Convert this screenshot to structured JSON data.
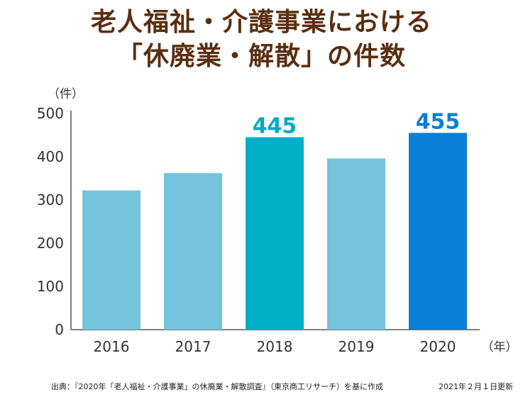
{
  "title": {
    "line1": "老人福祉・介護事業における",
    "line2": "「休廃業・解散」の件数"
  },
  "chart_data": {
    "type": "bar",
    "categories": [
      "2016",
      "2017",
      "2018",
      "2019",
      "2020"
    ],
    "values": [
      322,
      362,
      445,
      396,
      455
    ],
    "data_labels": [
      "",
      "",
      "445",
      "",
      "455"
    ],
    "colors": [
      "#74c4de",
      "#74c4de",
      "#00b0c8",
      "#74c4de",
      "#0a7fd6"
    ],
    "label_colors": [
      "",
      "",
      "#00aac3",
      "",
      "#0a7fd6"
    ],
    "ylim": [
      0,
      500
    ],
    "yticks": [
      "0",
      "100",
      "200",
      "300",
      "400",
      "500"
    ],
    "y_unit": "（件）",
    "x_unit": "（年）",
    "grid": false
  },
  "footer": {
    "source": "出典：『2020年「老人福祉・介護事業」の休廃業・解散調査』（東京商工リサーチ）を基に作成",
    "updated": "2021年２月１日更新"
  }
}
